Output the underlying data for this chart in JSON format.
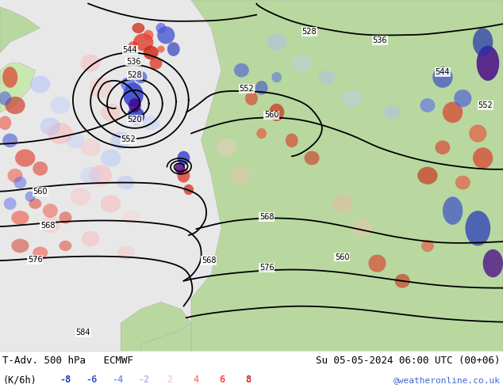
{
  "title_left": "T-Adv. 500 hPa   ECMWF",
  "title_right": "Su 05-05-2024 06:00 UTC (00+06)",
  "units_label": "(K/6h)",
  "watermark": "@weatheronline.co.uk",
  "bg_color": "#ffffff",
  "ocean_color": "#e8e8e8",
  "land_color": "#b8d8a0",
  "land_color2": "#c8e8b0",
  "fig_width": 6.34,
  "fig_height": 4.9,
  "dpi": 100,
  "neg_bar_colors": [
    "#2233bb",
    "#4455cc",
    "#8899ee",
    "#bbccff"
  ],
  "pos_bar_colors": [
    "#ffcccc",
    "#ff8888",
    "#ff5555",
    "#cc2222"
  ],
  "watermark_color": "#4466cc",
  "contour_lw": 1.3
}
